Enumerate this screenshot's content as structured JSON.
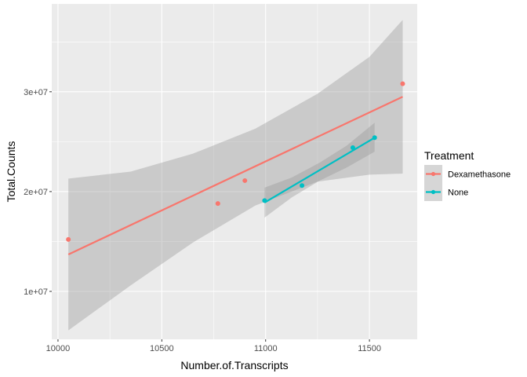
{
  "chart_data": {
    "type": "scatter",
    "xlabel": "Number.of.Transcripts",
    "ylabel": "Total.Counts",
    "xlim": [
      9970,
      11730
    ],
    "ylim": [
      5200000,
      38800000
    ],
    "x_ticks": [
      10000,
      10500,
      11000,
      11500
    ],
    "x_tick_labels": [
      "10000",
      "10500",
      "11000",
      "11500"
    ],
    "y_ticks": [
      10000000,
      20000000,
      30000000
    ],
    "y_tick_labels": [
      "1e+07",
      "2e+07",
      "3e+07"
    ],
    "grid": true,
    "legend": {
      "title": "Treatment",
      "placement": "right",
      "entries": [
        "Dexamethasone",
        "None"
      ]
    },
    "series": [
      {
        "name": "Dexamethasone",
        "color": "#F8766D",
        "points": [
          {
            "x": 10050,
            "y": 15200000
          },
          {
            "x": 10770,
            "y": 18800000
          },
          {
            "x": 10900,
            "y": 21100000
          },
          {
            "x": 11660,
            "y": 30800000
          }
        ],
        "fit": {
          "x": [
            10050,
            11660
          ],
          "y": [
            13700000,
            29500000
          ]
        },
        "band": {
          "x": [
            10050,
            10350,
            10650,
            10950,
            11250,
            11500,
            11660
          ],
          "upper": [
            21300000,
            22000000,
            23800000,
            26300000,
            29800000,
            33500000,
            37200000
          ],
          "lower": [
            6100000,
            10600000,
            14900000,
            18600000,
            21000000,
            21700000,
            21800000
          ]
        }
      },
      {
        "name": "None",
        "color": "#00BFC4",
        "points": [
          {
            "x": 10995,
            "y": 19100000
          },
          {
            "x": 11175,
            "y": 20600000
          },
          {
            "x": 11420,
            "y": 24400000
          },
          {
            "x": 11525,
            "y": 25400000
          }
        ],
        "fit": {
          "x": [
            10995,
            11525
          ],
          "y": [
            18900000,
            25400000
          ]
        },
        "band": {
          "x": [
            10995,
            11125,
            11260,
            11390,
            11525
          ],
          "upper": [
            20400000,
            21400000,
            22900000,
            24600000,
            26900000
          ],
          "lower": [
            17400000,
            19400000,
            21100000,
            22400000,
            24000000
          ]
        }
      }
    ]
  }
}
